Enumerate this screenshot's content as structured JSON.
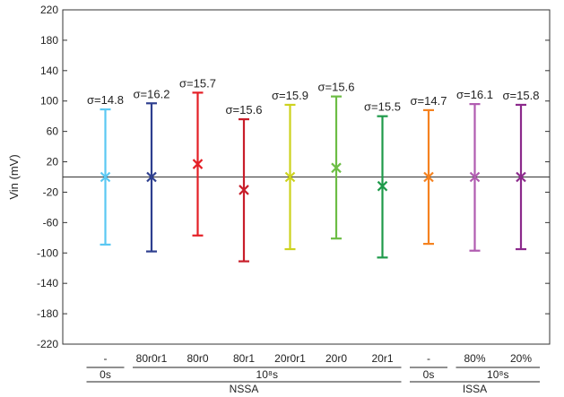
{
  "chart_data": {
    "type": "errorbar",
    "ylabel": "Vin (mV)",
    "ylim": [
      -220,
      220
    ],
    "yticks": [
      220,
      180,
      140,
      100,
      60,
      20,
      -20,
      -60,
      -100,
      -140,
      -180,
      -220
    ],
    "grid": false,
    "reference_line_y": 0,
    "series": [
      {
        "category": "-",
        "mean": 0,
        "low": -89,
        "high": 89,
        "sigma_label": "σ=14.8",
        "color": "#5bc8f2"
      },
      {
        "category": "80r0r1",
        "mean": 0,
        "low": -98,
        "high": 97,
        "sigma_label": "σ=16.2",
        "color": "#2e3f8f"
      },
      {
        "category": "80r0",
        "mean": 17,
        "low": -77,
        "high": 111,
        "sigma_label": "σ=15.7",
        "color": "#e41f26"
      },
      {
        "category": "80r1",
        "mean": -17,
        "low": -111,
        "high": 76,
        "sigma_label": "σ=15.6",
        "color": "#c81e2a"
      },
      {
        "category": "20r0r1",
        "mean": 0,
        "low": -95,
        "high": 95,
        "sigma_label": "σ=15.9",
        "color": "#cdd21e"
      },
      {
        "category": "20r0",
        "mean": 12,
        "low": -81,
        "high": 106,
        "sigma_label": "σ=15.6",
        "color": "#6cbd45"
      },
      {
        "category": "20r1",
        "mean": -12,
        "low": -106,
        "high": 80,
        "sigma_label": "σ=15.5",
        "color": "#1e9a4a"
      },
      {
        "category": "-",
        "mean": 0,
        "low": -88,
        "high": 88,
        "sigma_label": "σ=14.7",
        "color": "#f58220"
      },
      {
        "category": "80%",
        "mean": 0,
        "low": -97,
        "high": 96,
        "sigma_label": "σ=16.1",
        "color": "#b05cb0"
      },
      {
        "category": "20%",
        "mean": 0,
        "low": -95,
        "high": 95,
        "sigma_label": "σ=15.8",
        "color": "#8c2a8c"
      }
    ],
    "sub_groups": [
      {
        "label": "0s",
        "from": 0,
        "to": 0
      },
      {
        "label": "10⁸s",
        "from": 1,
        "to": 6
      },
      {
        "label": "0s",
        "from": 7,
        "to": 7
      },
      {
        "label": "10⁸s",
        "from": 8,
        "to": 9
      }
    ],
    "groups": [
      {
        "label": "NSSA",
        "from": 0,
        "to": 6
      },
      {
        "label": "ISSA",
        "from": 7,
        "to": 9
      }
    ]
  }
}
